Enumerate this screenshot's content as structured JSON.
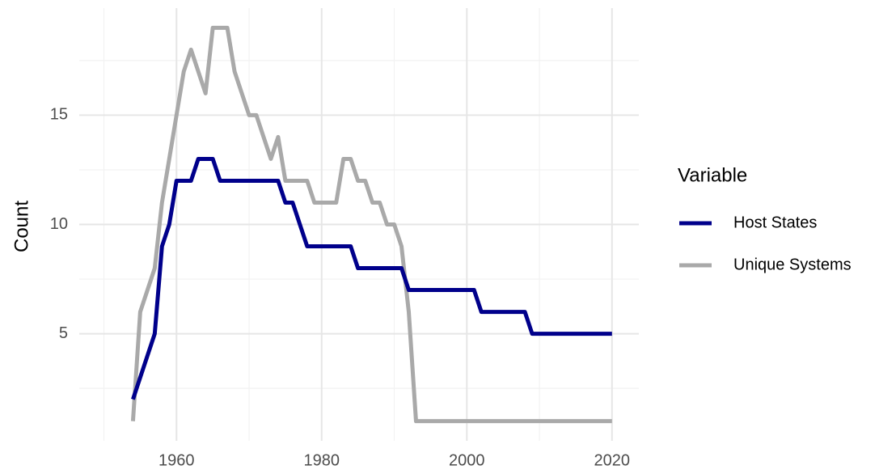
{
  "chart_data": {
    "type": "line",
    "y_label": "Count",
    "legend_title": "Variable",
    "x": [
      1954,
      1955,
      1956,
      1957,
      1958,
      1959,
      1960,
      1961,
      1962,
      1963,
      1964,
      1965,
      1966,
      1967,
      1968,
      1969,
      1970,
      1971,
      1972,
      1973,
      1974,
      1975,
      1976,
      1977,
      1978,
      1979,
      1980,
      1981,
      1982,
      1983,
      1984,
      1985,
      1986,
      1987,
      1988,
      1989,
      1990,
      1991,
      1992,
      1993,
      1994,
      1995,
      1996,
      1997,
      1998,
      1999,
      2000,
      2001,
      2002,
      2003,
      2004,
      2005,
      2006,
      2007,
      2008,
      2009,
      2010,
      2011,
      2012,
      2013,
      2014,
      2015,
      2016,
      2017,
      2018,
      2019,
      2020
    ],
    "series": [
      {
        "name": "Host States",
        "color": "#00008b",
        "values": [
          2,
          3,
          4,
          5,
          9,
          10,
          12,
          12,
          12,
          13,
          13,
          13,
          12,
          12,
          12,
          12,
          12,
          12,
          12,
          12,
          12,
          11,
          11,
          10,
          9,
          9,
          9,
          9,
          9,
          9,
          9,
          8,
          8,
          8,
          8,
          8,
          8,
          8,
          7,
          7,
          7,
          7,
          7,
          7,
          7,
          7,
          7,
          7,
          6,
          6,
          6,
          6,
          6,
          6,
          6,
          5,
          5,
          5,
          5,
          5,
          5,
          5,
          5,
          5,
          5,
          5,
          5
        ]
      },
      {
        "name": "Unique Systems",
        "color": "#a9a9a9",
        "values": [
          1,
          6,
          7,
          8,
          11,
          13,
          15,
          17,
          18,
          17,
          16,
          19,
          19,
          19,
          17,
          16,
          15,
          15,
          14,
          13,
          14,
          12,
          12,
          12,
          12,
          11,
          11,
          11,
          11,
          13,
          13,
          12,
          12,
          11,
          11,
          10,
          10,
          9,
          6,
          1,
          1,
          1,
          1,
          1,
          1,
          1,
          1,
          1,
          1,
          1,
          1,
          1,
          1,
          1,
          1,
          1,
          1,
          1,
          1,
          1,
          1,
          1,
          1,
          1,
          1,
          1,
          1
        ]
      }
    ],
    "xlim": [
      1946.6,
      2023.7
    ],
    "ylim": [
      0.1,
      19.9
    ],
    "xticks": [
      1960,
      1980,
      2000,
      2020
    ],
    "x_minor_ticks": [
      1950,
      1970,
      1990,
      2010
    ],
    "yticks": [
      5,
      10,
      15
    ],
    "y_minor_ticks": [
      2.5,
      7.5,
      12.5,
      17.5
    ],
    "grid": true,
    "legend_position": "right"
  }
}
